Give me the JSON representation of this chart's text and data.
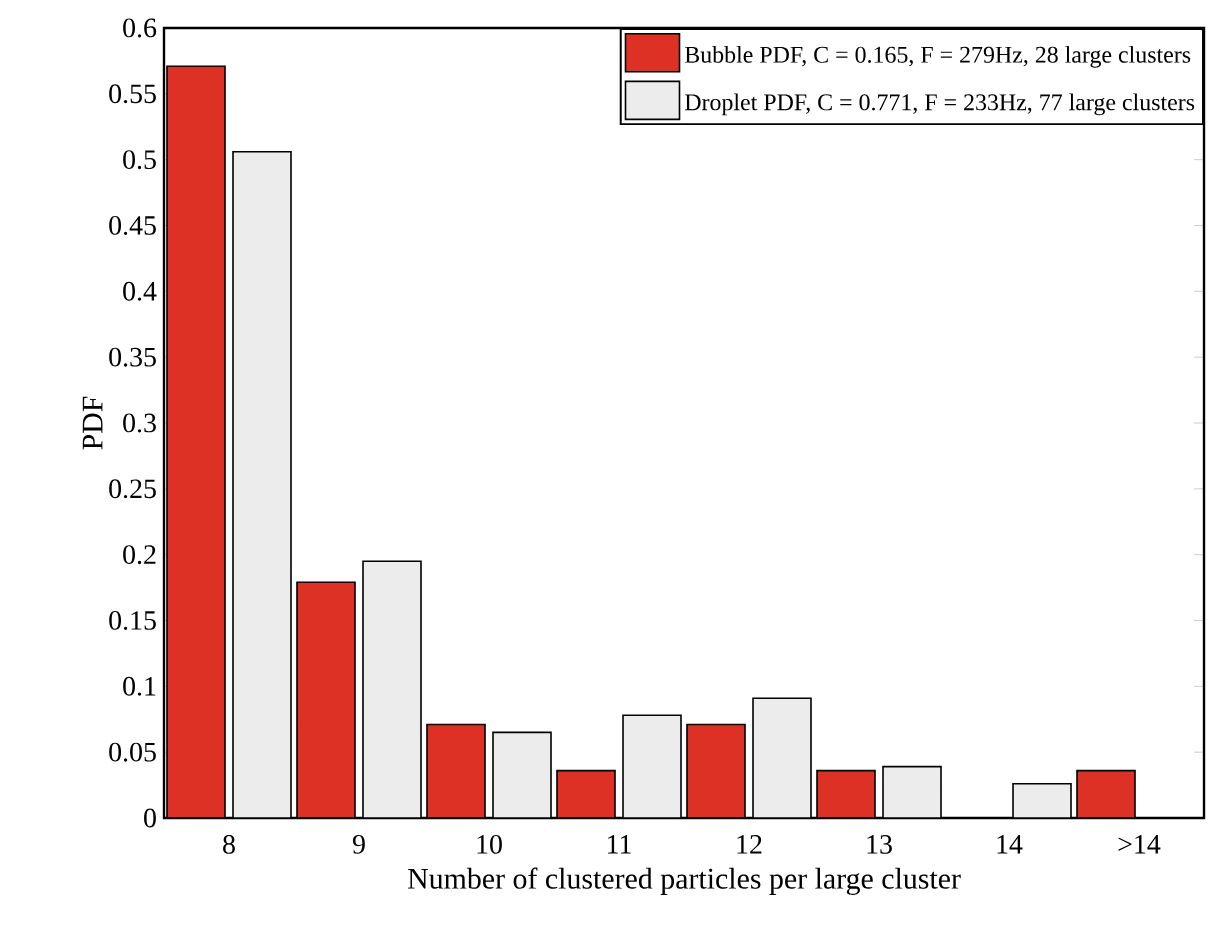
{
  "chart_data": {
    "type": "bar",
    "xlabel": "Number of clustered particles per large cluster",
    "ylabel": "PDF",
    "categories": [
      "8",
      "9",
      "10",
      "11",
      "12",
      "13",
      "14",
      ">14"
    ],
    "series": [
      {
        "name": "Bubble PDF, C = 0.165, F = 279Hz, 28 large clusters",
        "color": "#dc3124",
        "values": [
          0.571,
          0.179,
          0.071,
          0.036,
          0.071,
          0.036,
          0,
          0.036
        ]
      },
      {
        "name": "Droplet PDF, C = 0.771, F = 233Hz, 77 large clusters",
        "color": "#ececec",
        "values": [
          0.506,
          0.195,
          0.065,
          0.078,
          0.091,
          0.039,
          0.026,
          0
        ]
      }
    ],
    "ylim": [
      0,
      0.6
    ],
    "yticks": [
      0,
      0.05,
      0.1,
      0.15,
      0.2,
      0.25,
      0.3,
      0.35,
      0.4,
      0.45,
      0.5,
      0.55,
      0.6
    ],
    "legend": "top right",
    "grid": false
  }
}
